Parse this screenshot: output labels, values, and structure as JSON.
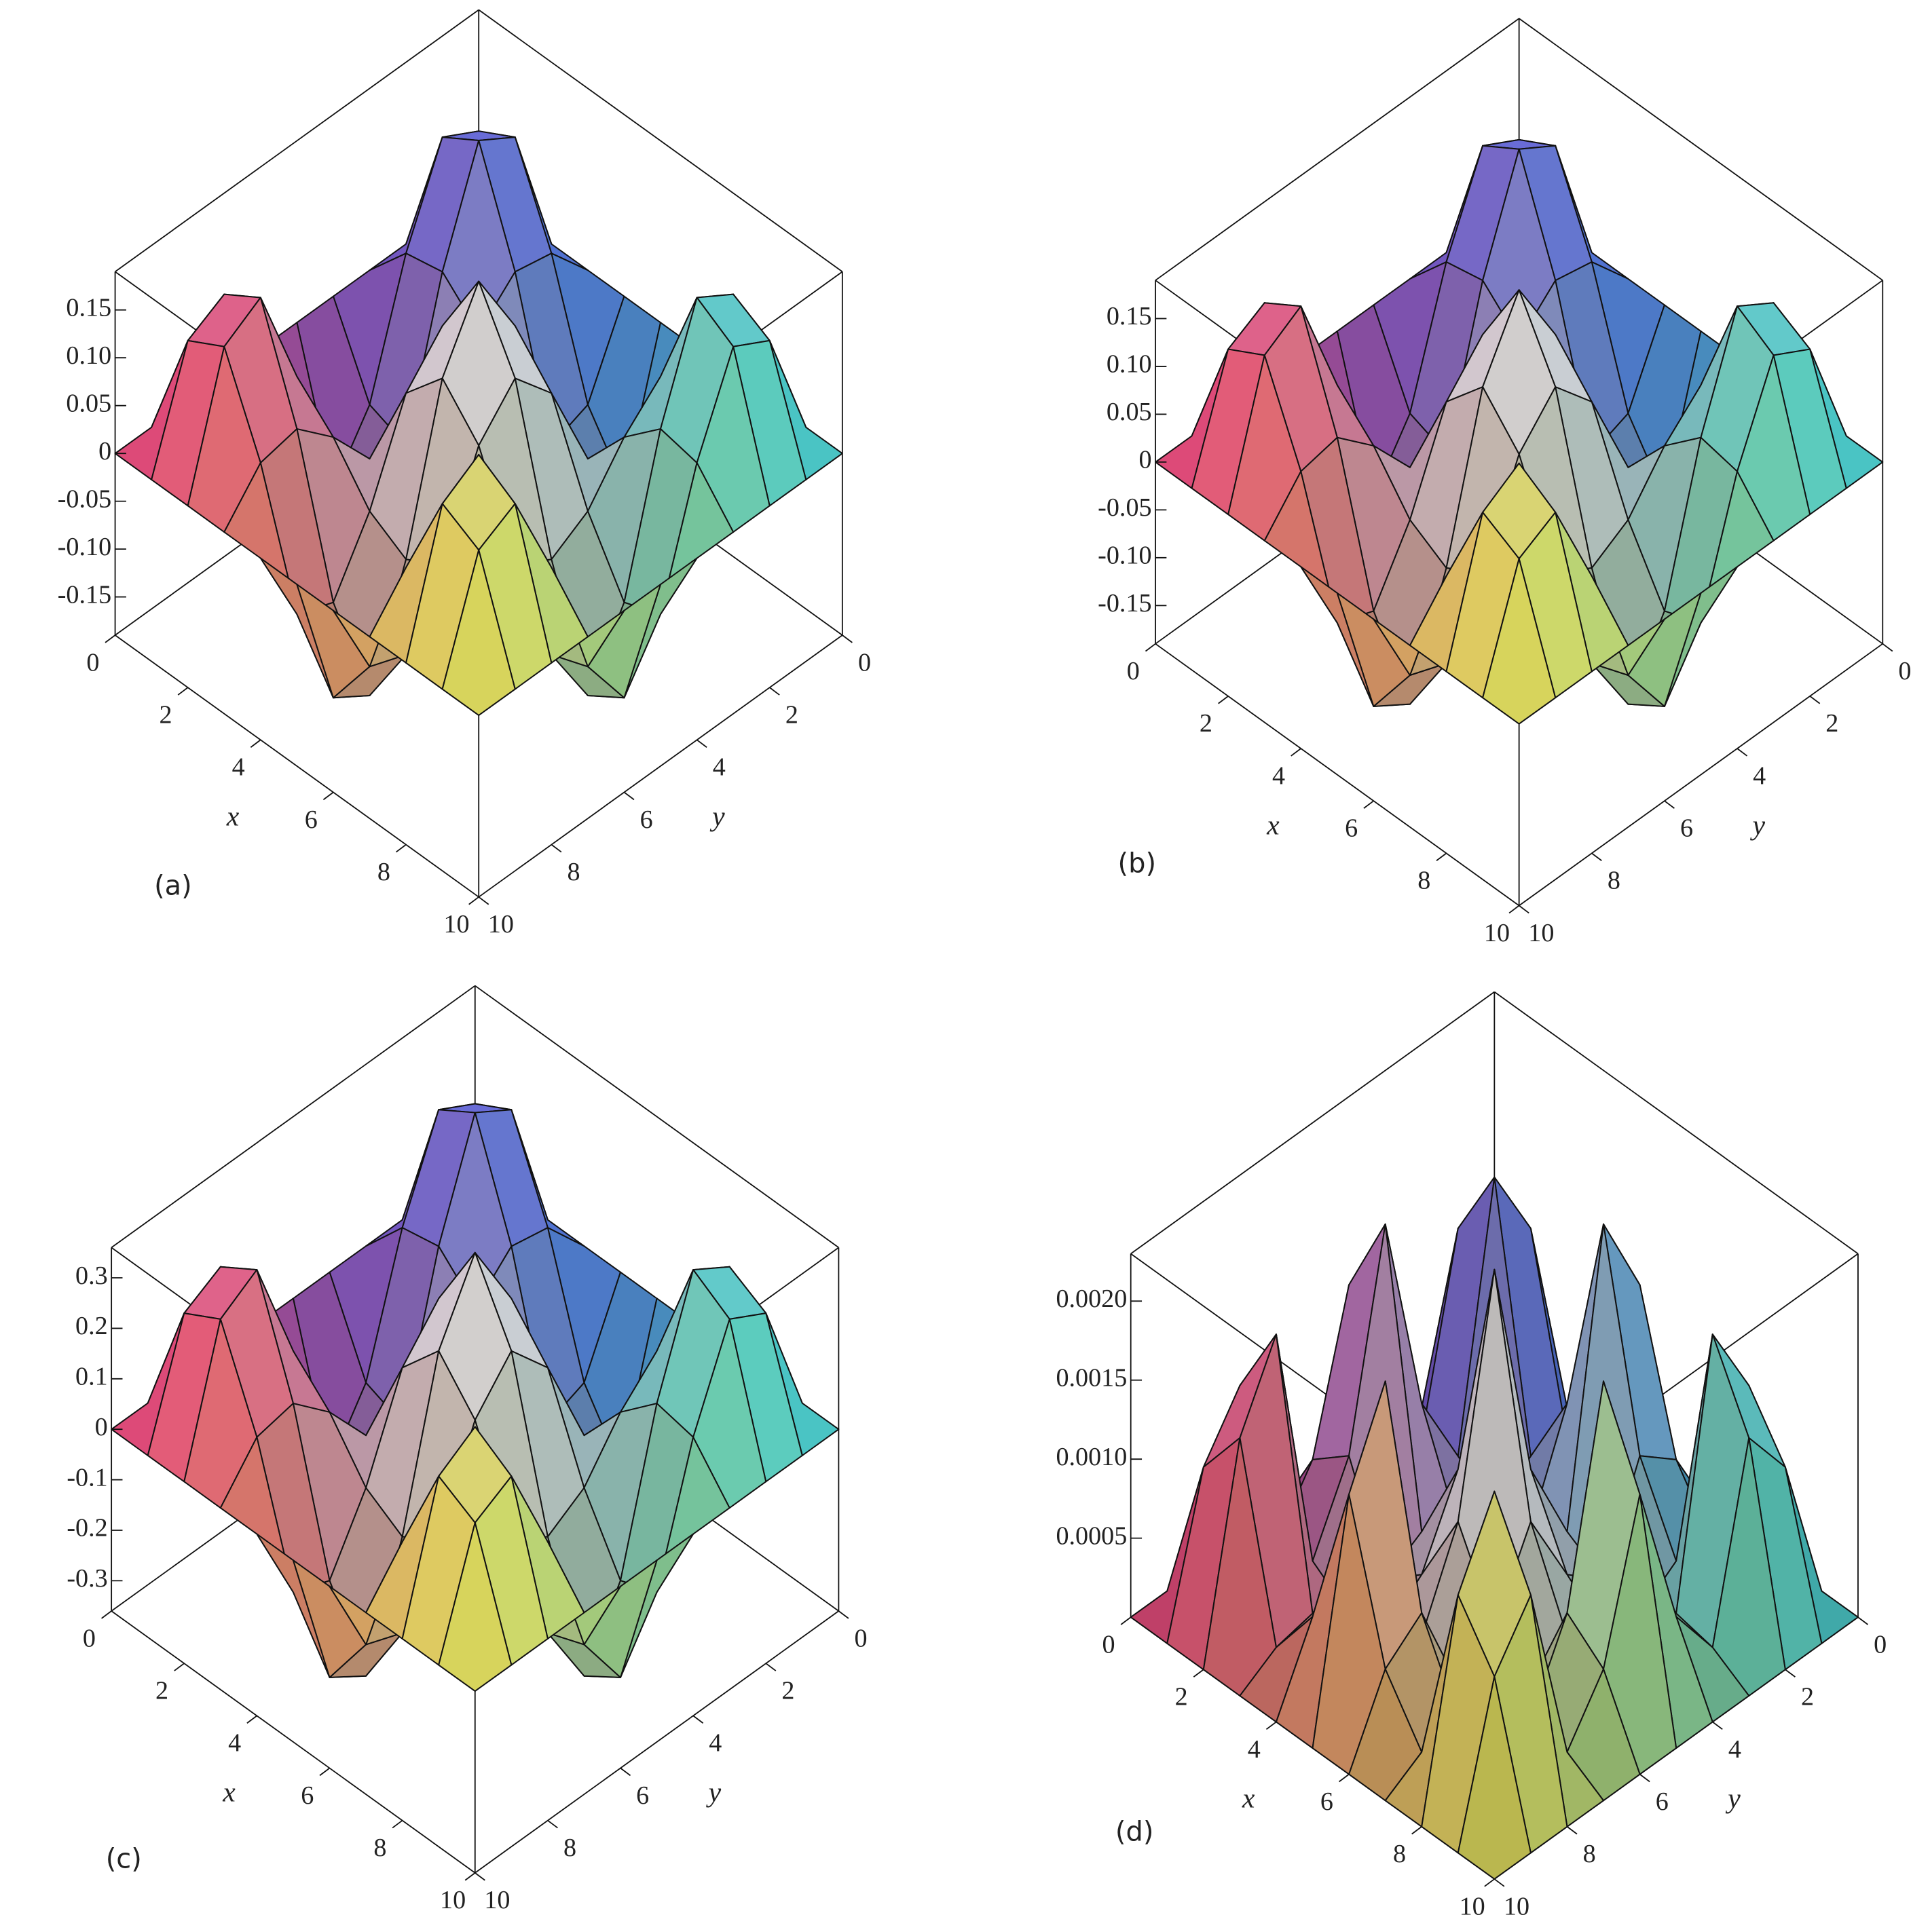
{
  "chart_data": [
    {
      "type": "surface",
      "label": "(a)",
      "xlabel": "x",
      "ylabel": "y",
      "x": [
        0,
        1,
        2,
        3,
        4,
        5,
        6,
        7,
        8,
        9,
        10
      ],
      "y": [
        0,
        1,
        2,
        3,
        4,
        5,
        6,
        7,
        8,
        9,
        10
      ],
      "xlim": [
        0,
        10
      ],
      "ylim": [
        0,
        10
      ],
      "zlim": [
        -0.19,
        0.19
      ],
      "xticks": [
        0,
        2,
        4,
        6,
        8,
        10
      ],
      "yticks": [
        0,
        2,
        4,
        6,
        8,
        10
      ],
      "zticks": [
        -0.15,
        {
          "value": -0.1,
          "label": "-0.10"
        },
        -0.05,
        0,
        0.05,
        {
          "value": 0.1,
          "label": "0.10"
        },
        0.15
      ],
      "z": [
        [
          0,
          0,
          0,
          0,
          0,
          0,
          0,
          0,
          0,
          0,
          0
        ],
        [
          0,
          0.118,
          0.139,
          0.045,
          -0.086,
          -0.146,
          -0.086,
          0.045,
          0.139,
          0.118,
          0
        ],
        [
          0,
          0.139,
          0.163,
          0.053,
          -0.101,
          -0.171,
          -0.101,
          0.053,
          0.163,
          0.139,
          0
        ],
        [
          0,
          0.045,
          0.053,
          0.017,
          -0.033,
          -0.056,
          -0.033,
          0.017,
          0.053,
          0.045,
          0
        ],
        [
          0,
          -0.086,
          -0.101,
          -0.033,
          0.063,
          0.106,
          0.063,
          -0.033,
          -0.101,
          -0.086,
          0
        ],
        [
          0,
          -0.146,
          -0.171,
          -0.056,
          0.106,
          0.18,
          0.106,
          -0.056,
          -0.171,
          -0.146,
          0
        ],
        [
          0,
          -0.086,
          -0.101,
          -0.033,
          0.063,
          0.106,
          0.063,
          -0.033,
          -0.101,
          -0.086,
          0
        ],
        [
          0,
          0.045,
          0.053,
          0.017,
          -0.033,
          -0.056,
          -0.033,
          0.017,
          0.053,
          0.045,
          0
        ],
        [
          0,
          0.139,
          0.163,
          0.053,
          -0.101,
          -0.171,
          -0.101,
          0.053,
          0.163,
          0.139,
          0
        ],
        [
          0,
          0.118,
          0.139,
          0.045,
          -0.086,
          -0.146,
          -0.086,
          0.045,
          0.139,
          0.118,
          0
        ],
        [
          0,
          0,
          0,
          0,
          0,
          0,
          0,
          0,
          0,
          0,
          0
        ]
      ]
    },
    {
      "type": "surface",
      "label": "(b)",
      "xlabel": "x",
      "ylabel": "y",
      "x": [
        0,
        1,
        2,
        3,
        4,
        5,
        6,
        7,
        8,
        9,
        10
      ],
      "y": [
        0,
        1,
        2,
        3,
        4,
        5,
        6,
        7,
        8,
        9,
        10
      ],
      "xlim": [
        0,
        10
      ],
      "ylim": [
        0,
        10
      ],
      "zlim": [
        -0.19,
        0.19
      ],
      "xticks": [
        0,
        2,
        4,
        6,
        8,
        10
      ],
      "yticks": [
        0,
        2,
        4,
        6,
        8,
        10
      ],
      "zticks": [
        -0.15,
        {
          "value": -0.1,
          "label": "-0.10"
        },
        -0.05,
        0,
        0.05,
        {
          "value": 0.1,
          "label": "0.10"
        },
        0.15
      ],
      "z": [
        [
          0,
          0,
          0,
          0,
          0,
          0,
          0,
          0,
          0,
          0,
          0
        ],
        [
          0,
          0.118,
          0.139,
          0.045,
          -0.086,
          -0.146,
          -0.086,
          0.045,
          0.139,
          0.118,
          0
        ],
        [
          0,
          0.139,
          0.163,
          0.053,
          -0.101,
          -0.171,
          -0.101,
          0.053,
          0.163,
          0.139,
          0
        ],
        [
          0,
          0.045,
          0.053,
          0.017,
          -0.033,
          -0.056,
          -0.033,
          0.017,
          0.053,
          0.045,
          0
        ],
        [
          0,
          -0.086,
          -0.101,
          -0.033,
          0.063,
          0.106,
          0.063,
          -0.033,
          -0.101,
          -0.086,
          0
        ],
        [
          0,
          -0.146,
          -0.171,
          -0.056,
          0.106,
          0.18,
          0.106,
          -0.056,
          -0.171,
          -0.146,
          0
        ],
        [
          0,
          -0.086,
          -0.101,
          -0.033,
          0.063,
          0.106,
          0.063,
          -0.033,
          -0.101,
          -0.086,
          0
        ],
        [
          0,
          0.045,
          0.053,
          0.017,
          -0.033,
          -0.056,
          -0.033,
          0.017,
          0.053,
          0.045,
          0
        ],
        [
          0,
          0.139,
          0.163,
          0.053,
          -0.101,
          -0.171,
          -0.101,
          0.053,
          0.163,
          0.139,
          0
        ],
        [
          0,
          0.118,
          0.139,
          0.045,
          -0.086,
          -0.146,
          -0.086,
          0.045,
          0.139,
          0.118,
          0
        ],
        [
          0,
          0,
          0,
          0,
          0,
          0,
          0,
          0,
          0,
          0,
          0
        ]
      ]
    },
    {
      "type": "surface",
      "label": "(c)",
      "xlabel": "x",
      "ylabel": "y",
      "x": [
        0,
        1,
        2,
        3,
        4,
        5,
        6,
        7,
        8,
        9,
        10
      ],
      "y": [
        0,
        1,
        2,
        3,
        4,
        5,
        6,
        7,
        8,
        9,
        10
      ],
      "xlim": [
        0,
        10
      ],
      "ylim": [
        0,
        10
      ],
      "zlim": [
        -0.36,
        0.36
      ],
      "xticks": [
        0,
        2,
        4,
        6,
        8,
        10
      ],
      "yticks": [
        0,
        2,
        4,
        6,
        8,
        10
      ],
      "zticks": [
        -0.3,
        -0.2,
        -0.1,
        0,
        0.1,
        0.2,
        0.3
      ],
      "z": [
        [
          0,
          0,
          0,
          0,
          0,
          0,
          0,
          0,
          0,
          0,
          0
        ],
        [
          0,
          0.23,
          0.27,
          0.088,
          -0.167,
          -0.284,
          -0.167,
          0.088,
          0.27,
          0.23,
          0
        ],
        [
          0,
          0.27,
          0.316,
          0.103,
          -0.196,
          -0.333,
          -0.196,
          0.103,
          0.316,
          0.27,
          0
        ],
        [
          0,
          0.088,
          0.103,
          0.034,
          -0.064,
          -0.109,
          -0.064,
          0.034,
          0.103,
          0.088,
          0
        ],
        [
          0,
          -0.167,
          -0.196,
          -0.064,
          0.122,
          0.207,
          0.122,
          -0.064,
          -0.196,
          -0.167,
          0
        ],
        [
          0,
          -0.284,
          -0.333,
          -0.109,
          0.207,
          0.35,
          0.207,
          -0.109,
          -0.333,
          -0.284,
          0
        ],
        [
          0,
          -0.167,
          -0.196,
          -0.064,
          0.122,
          0.207,
          0.122,
          -0.064,
          -0.196,
          -0.167,
          0
        ],
        [
          0,
          0.088,
          0.103,
          0.034,
          -0.064,
          -0.109,
          -0.064,
          0.034,
          0.103,
          0.088,
          0
        ],
        [
          0,
          0.27,
          0.316,
          0.103,
          -0.196,
          -0.333,
          -0.196,
          0.103,
          0.316,
          0.27,
          0
        ],
        [
          0,
          0.23,
          0.27,
          0.088,
          -0.167,
          -0.284,
          -0.167,
          0.088,
          0.27,
          0.23,
          0
        ],
        [
          0,
          0,
          0,
          0,
          0,
          0,
          0,
          0,
          0,
          0,
          0
        ]
      ]
    },
    {
      "type": "surface",
      "label": "(d)",
      "xlabel": "x",
      "ylabel": "y",
      "x": [
        0,
        1,
        2,
        3,
        4,
        5,
        6,
        7,
        8,
        9,
        10
      ],
      "y": [
        0,
        1,
        2,
        3,
        4,
        5,
        6,
        7,
        8,
        9,
        10
      ],
      "xlim": [
        0,
        10
      ],
      "ylim": [
        0,
        10
      ],
      "zlim": [
        0,
        0.0023
      ],
      "xticks": [
        0,
        2,
        4,
        6,
        8,
        10
      ],
      "yticks": [
        0,
        2,
        4,
        6,
        8,
        10
      ],
      "zticks": [
        0.0005,
        {
          "value": 0.001,
          "label": "0.0010"
        },
        0.0015,
        {
          "value": 0.002,
          "label": "0.0020"
        }
      ],
      "z": [
        [
          0,
          0,
          0,
          0,
          0,
          0,
          0,
          0,
          0,
          0,
          0
        ],
        [
          0,
          0.00095,
          0.0013,
          0.00014,
          0.0005,
          0.00144,
          0.0005,
          0.00014,
          0.0013,
          0.00095,
          0
        ],
        [
          0,
          0.0013,
          0.00179,
          0.00019,
          0.00069,
          0.00199,
          0.00069,
          0.00019,
          0.00179,
          0.0013,
          0
        ],
        [
          0,
          0.00014,
          0.00019,
          2e-05,
          7e-05,
          0.00021,
          7e-05,
          2e-05,
          0.00019,
          0.00014,
          0
        ],
        [
          0,
          0.0005,
          0.00069,
          7e-05,
          0.00027,
          0.00077,
          0.00027,
          7e-05,
          0.00069,
          0.0005,
          0
        ],
        [
          0,
          0.00144,
          0.00199,
          0.00021,
          0.00077,
          0.0022,
          0.00077,
          0.00021,
          0.00199,
          0.00144,
          0
        ],
        [
          0,
          0.0005,
          0.00069,
          7e-05,
          0.00027,
          0.00077,
          0.00027,
          7e-05,
          0.00069,
          0.0005,
          0
        ],
        [
          0,
          0.00014,
          0.00019,
          2e-05,
          7e-05,
          0.00021,
          7e-05,
          2e-05,
          0.00019,
          0.00014,
          0
        ],
        [
          0,
          0.0013,
          0.00179,
          0.00019,
          0.00069,
          0.00199,
          0.00069,
          0.00019,
          0.00179,
          0.0013,
          0
        ],
        [
          0,
          0.00095,
          0.0013,
          0.00014,
          0.0005,
          0.00144,
          0.0005,
          0.00014,
          0.0013,
          0.00095,
          0
        ],
        [
          0,
          0,
          0,
          0,
          0,
          0,
          0,
          0,
          0,
          0,
          0
        ]
      ]
    }
  ]
}
